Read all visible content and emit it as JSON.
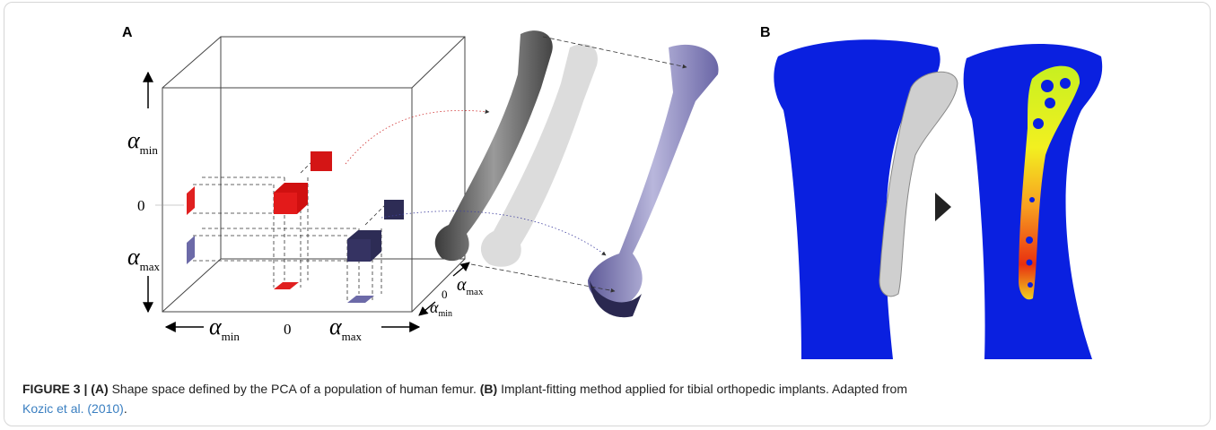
{
  "panels": {
    "a": "A",
    "b": "B"
  },
  "vertical_axis": {
    "top": {
      "symbol": "α",
      "sub": "min"
    },
    "middle": "0",
    "bottom": {
      "symbol": "α",
      "sub": "max"
    }
  },
  "horizontal_axis": {
    "left": {
      "symbol": "α",
      "sub": "min"
    },
    "middle": "0",
    "right": {
      "symbol": "α",
      "sub": "max"
    }
  },
  "depth_axis": {
    "back": {
      "symbol": "α",
      "sub": "max"
    },
    "middle": "0",
    "front": {
      "symbol": "α",
      "sub": "min"
    }
  },
  "caption": {
    "figure": "FIGURE 3 |",
    "a_tag": "(A)",
    "a_text": "Shape space defined by the PCA of a population of human femur.",
    "b_tag": "(B)",
    "b_text": "Implant-fitting method applied for tibial orthopedic implants. Adapted from",
    "reference": "Kozic et al. (2010)",
    "end": "."
  }
}
